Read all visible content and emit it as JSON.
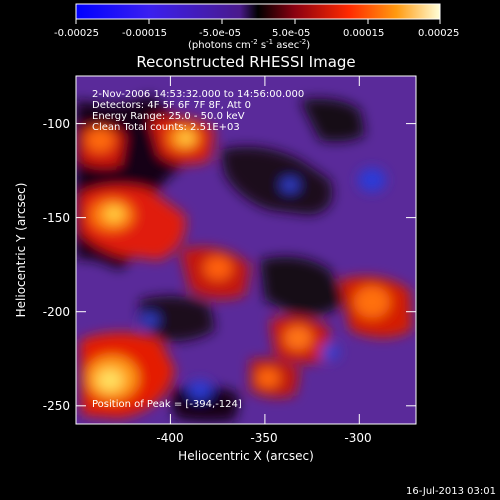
{
  "colorbar": {
    "tick_labels": [
      "-0.00025",
      "-0.00015",
      "-5.0e-05",
      "5.0e-05",
      "0.00015",
      "0.00025"
    ],
    "unit_main": "(photons cm",
    "unit_exp1": "-2",
    "unit_s": " s",
    "unit_exp2": "-1",
    "unit_asec": " asec",
    "unit_exp3": "-2",
    "unit_close": ")"
  },
  "title": "Reconstructed RHESSI Image",
  "annotations": {
    "time_range": " 2-Nov-2006 14:53:32.000 to 14:56:00.000",
    "detectors": "Detectors: 4F 5F 6F 7F 8F, Att 0",
    "energy_range": "Energy Range: 25.0 - 50.0 keV",
    "algorithm": "Clean    Total counts: 2.51E+03",
    "peak": "Position of Peak = [-394,-124]"
  },
  "axes": {
    "xlabel": "Heliocentric X (arcsec)",
    "ylabel": "Heliocentric Y (arcsec)",
    "x_ticks": [
      "-400",
      "-350",
      "-300"
    ],
    "y_ticks": [
      "-100",
      "-150",
      "-200",
      "-250"
    ],
    "xlim": [
      -445,
      -265
    ],
    "ylim": [
      -265,
      -80
    ]
  },
  "footer": {
    "timestamp": "16-Jul-2013 03:01"
  }
}
